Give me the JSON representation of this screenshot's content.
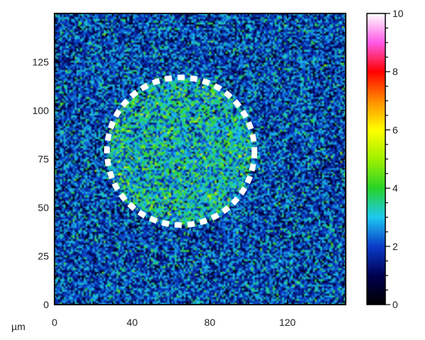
{
  "chart_data": {
    "type": "heatmap",
    "x_unit": "µm",
    "xlim": [
      0,
      150
    ],
    "ylim": [
      0,
      150
    ],
    "x_ticks": [
      0,
      40,
      80,
      120
    ],
    "y_ticks": [
      0,
      25,
      50,
      75,
      100,
      125
    ],
    "colorbar": {
      "range": [
        0,
        10
      ],
      "ticks": [
        0,
        2,
        4,
        6,
        8,
        10
      ]
    },
    "background_mean": 2,
    "annotation": {
      "shape": "dashed-circle",
      "color": "#ffffff",
      "center": [
        65,
        79
      ],
      "radius": 38,
      "inside_mean": 3
    }
  }
}
